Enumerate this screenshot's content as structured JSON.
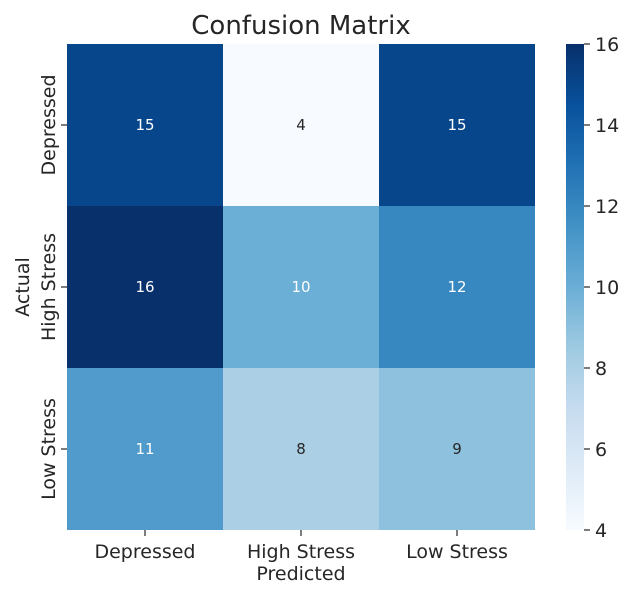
{
  "chart_data": {
    "type": "heatmap",
    "title": "Confusion Matrix",
    "xlabel": "Predicted",
    "ylabel": "Actual",
    "x_categories": [
      "Depressed",
      "High Stress",
      "Low Stress"
    ],
    "y_categories": [
      "Depressed",
      "High Stress",
      "Low Stress"
    ],
    "values": [
      [
        15,
        4,
        15
      ],
      [
        16,
        10,
        12
      ],
      [
        11,
        8,
        9
      ]
    ],
    "colormap": "Blues",
    "colorbar": {
      "range": [
        4,
        16
      ],
      "ticks": [
        "4",
        "6",
        "8",
        "10",
        "12",
        "14",
        "16"
      ]
    }
  }
}
